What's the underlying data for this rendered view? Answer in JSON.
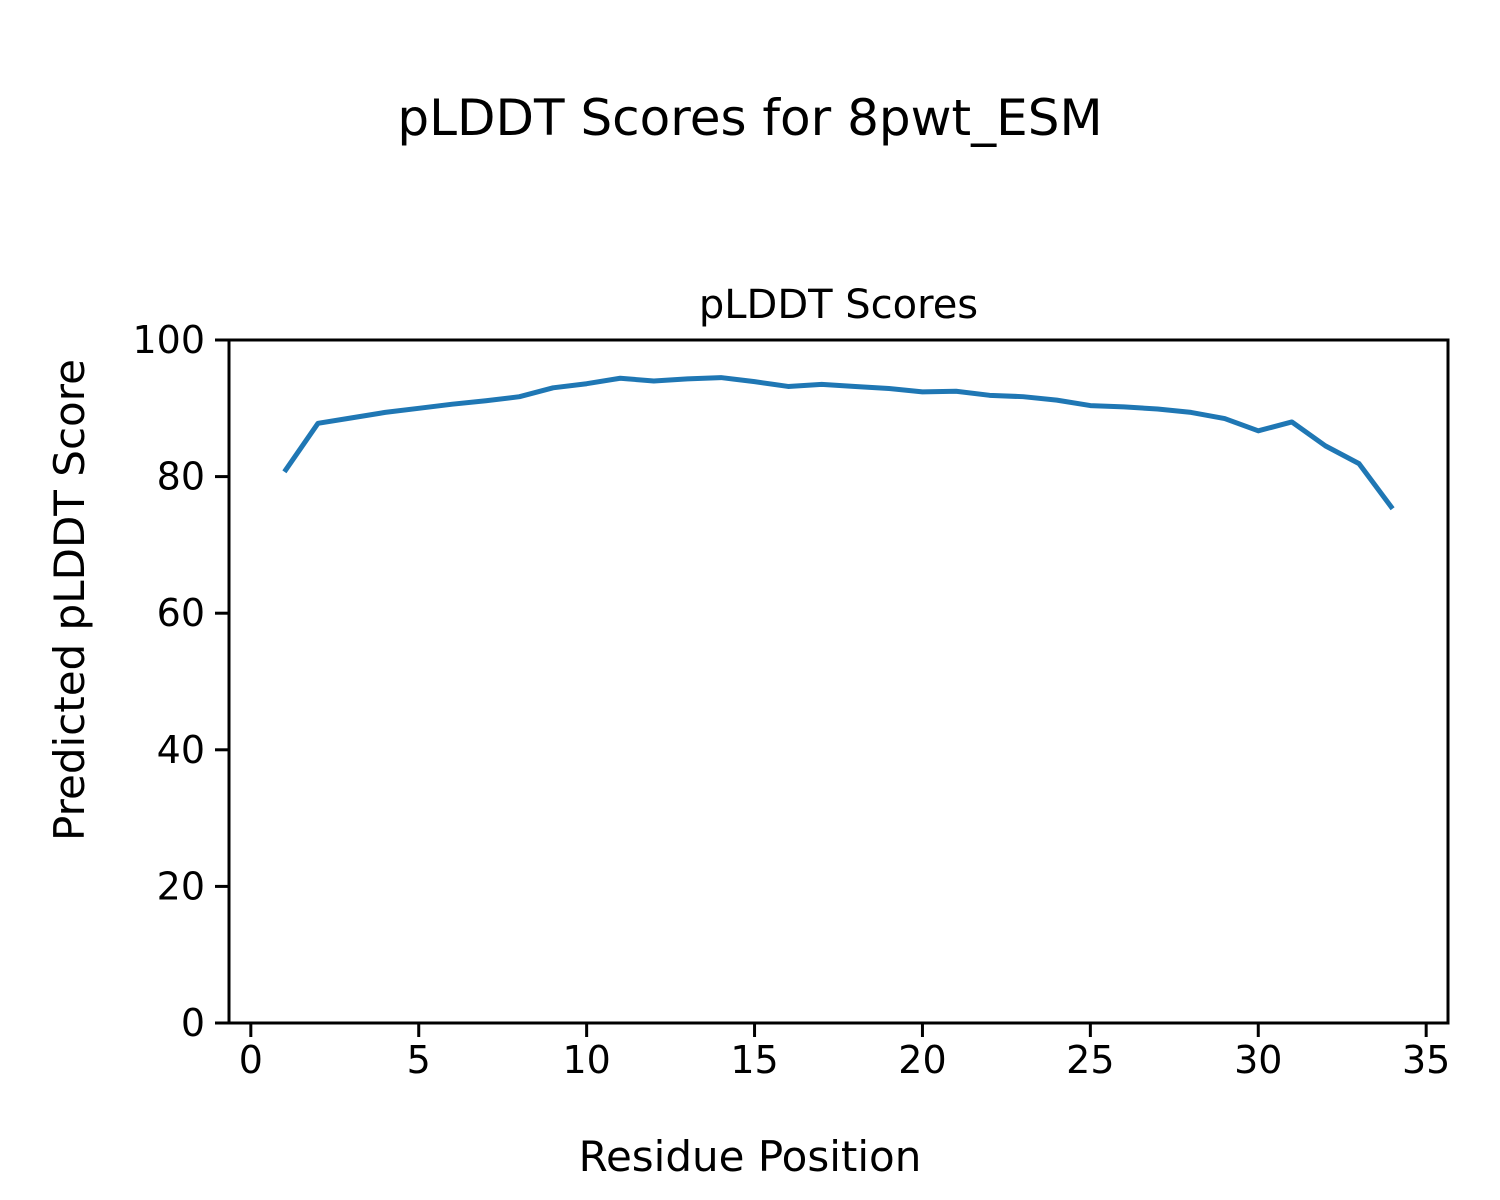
{
  "figure": {
    "suptitle": "pLDDT Scores for 8pwt_ESM",
    "axes_title": "pLDDT Scores",
    "xlabel": "Residue Position",
    "ylabel": "Predicted pLDDT Score"
  },
  "colors": {
    "background": "#ffffff",
    "axis": "#000000",
    "line": "#1f77b4"
  },
  "chart_data": {
    "type": "line",
    "title": "pLDDT Scores",
    "xlabel": "Residue Position",
    "ylabel": "Predicted pLDDT Score",
    "x": [
      1,
      2,
      3,
      4,
      5,
      6,
      7,
      8,
      9,
      10,
      11,
      12,
      13,
      14,
      15,
      16,
      17,
      18,
      19,
      20,
      21,
      22,
      23,
      24,
      25,
      26,
      27,
      28,
      29,
      30,
      31,
      32,
      33,
      34
    ],
    "series": [
      {
        "name": "pLDDT",
        "values": [
          80.7,
          87.8,
          88.6,
          89.4,
          90.0,
          90.6,
          91.1,
          91.7,
          93.0,
          93.6,
          94.4,
          94.0,
          94.3,
          94.5,
          93.9,
          93.2,
          93.5,
          93.2,
          92.9,
          92.4,
          92.5,
          91.9,
          91.7,
          91.2,
          90.4,
          90.2,
          89.9,
          89.4,
          88.5,
          86.7,
          88.0,
          84.5,
          81.9,
          75.3
        ]
      }
    ],
    "xlim": [
      -0.65,
      35.65
    ],
    "ylim": [
      0,
      100
    ],
    "xticks": [
      0,
      5,
      10,
      15,
      20,
      25,
      30,
      35
    ],
    "yticks": [
      0,
      20,
      40,
      60,
      80,
      100
    ],
    "grid": false,
    "legend_position": "none",
    "line_color": "#1f77b4",
    "line_width": 5
  }
}
